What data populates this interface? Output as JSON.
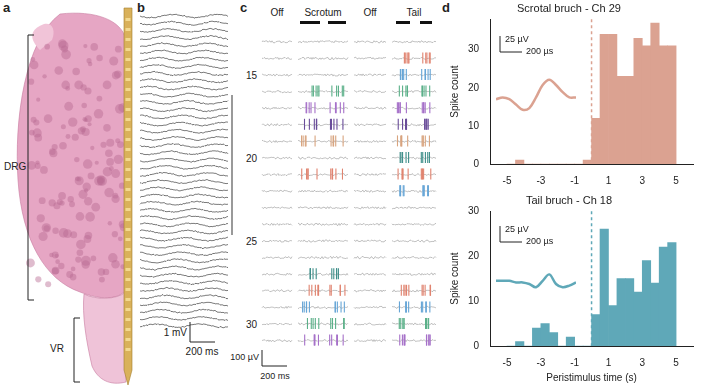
{
  "panels": {
    "a": {
      "label": "a",
      "regions": [
        "DRG",
        "VR"
      ]
    },
    "b": {
      "label": "b",
      "scale_bar": {
        "amplitude": "1 mV",
        "time": "200 ms"
      }
    },
    "c": {
      "label": "c",
      "columns": [
        "Off",
        "Scrotum",
        "Off",
        "Tail"
      ],
      "channels": [
        15,
        20,
        25,
        30
      ],
      "scale_bar": {
        "amplitude": "100 µV",
        "time": "200 ms"
      }
    },
    "d": {
      "label": "d"
    }
  },
  "chart_data": [
    {
      "type": "histogram",
      "title": "Scrotal bruch - Ch 29",
      "ylabel": "Spike count",
      "bins": [
        -5,
        -4.5,
        -4,
        -3.5,
        -3,
        -2.5,
        -2,
        -1.5,
        -1,
        -0.5,
        0,
        0.5,
        1,
        1.5,
        2,
        2.5,
        3,
        3.5,
        4,
        4.5,
        5
      ],
      "values": [
        0,
        1,
        0,
        0,
        0,
        0,
        0,
        0,
        0,
        1,
        12,
        34,
        34,
        23,
        23,
        33,
        31,
        37,
        31,
        31
      ],
      "color": "#dba291",
      "xlim": [
        -5,
        5
      ],
      "xticks": [
        -5,
        -3,
        -1,
        1,
        3,
        5
      ],
      "ylim": [
        0,
        38
      ],
      "yticks": [
        0,
        10,
        20,
        30
      ],
      "grid": false,
      "stimulus_time": 0,
      "waveform": {
        "x": [
          0,
          50,
          100,
          150,
          200,
          250,
          300,
          350,
          400,
          450,
          500,
          550,
          600
        ],
        "values": [
          14,
          15,
          14,
          11,
          8,
          9,
          15,
          22,
          25,
          22,
          18,
          15,
          15
        ],
        "xlim": [
          0,
          600
        ],
        "ylim": [
          0,
          35
        ],
        "tick_labels": false
      },
      "scale_bars": {
        "amplitude": "25 µV",
        "time": "200 µs"
      }
    },
    {
      "type": "histogram",
      "title": "Tail bruch - Ch 18",
      "xlabel": "Peristimulus time (s)",
      "ylabel": "Spike count",
      "bins": [
        -5,
        -4.5,
        -4,
        -3.5,
        -3,
        -2.5,
        -2,
        -1.5,
        -1,
        -0.5,
        0,
        0.5,
        1,
        1.5,
        2,
        2.5,
        3,
        3.5,
        4,
        4.5,
        5
      ],
      "values": [
        0,
        1,
        0,
        4,
        5,
        3,
        0,
        2,
        0,
        0,
        7,
        26,
        9,
        15,
        15,
        12,
        19,
        14,
        22,
        23
      ],
      "color": "#5fa8b8",
      "xlim": [
        -5,
        5
      ],
      "xticks": [
        -5,
        -3,
        -1,
        1,
        3,
        5
      ],
      "ylim": [
        0,
        30
      ],
      "yticks": [
        0,
        10,
        20,
        30
      ],
      "grid": false,
      "stimulus_time": 0,
      "waveform": {
        "x": [
          0,
          50,
          100,
          150,
          200,
          250,
          300,
          350,
          400,
          450,
          500,
          550,
          600
        ],
        "values": [
          17,
          17,
          17,
          16,
          16,
          15,
          13,
          17,
          21,
          15,
          13,
          14,
          16
        ],
        "xlim": [
          0,
          600
        ],
        "ylim": [
          0,
          35
        ],
        "tick_labels": false
      },
      "scale_bars": {
        "amplitude": "25 µV",
        "time": "200 µs"
      }
    }
  ]
}
